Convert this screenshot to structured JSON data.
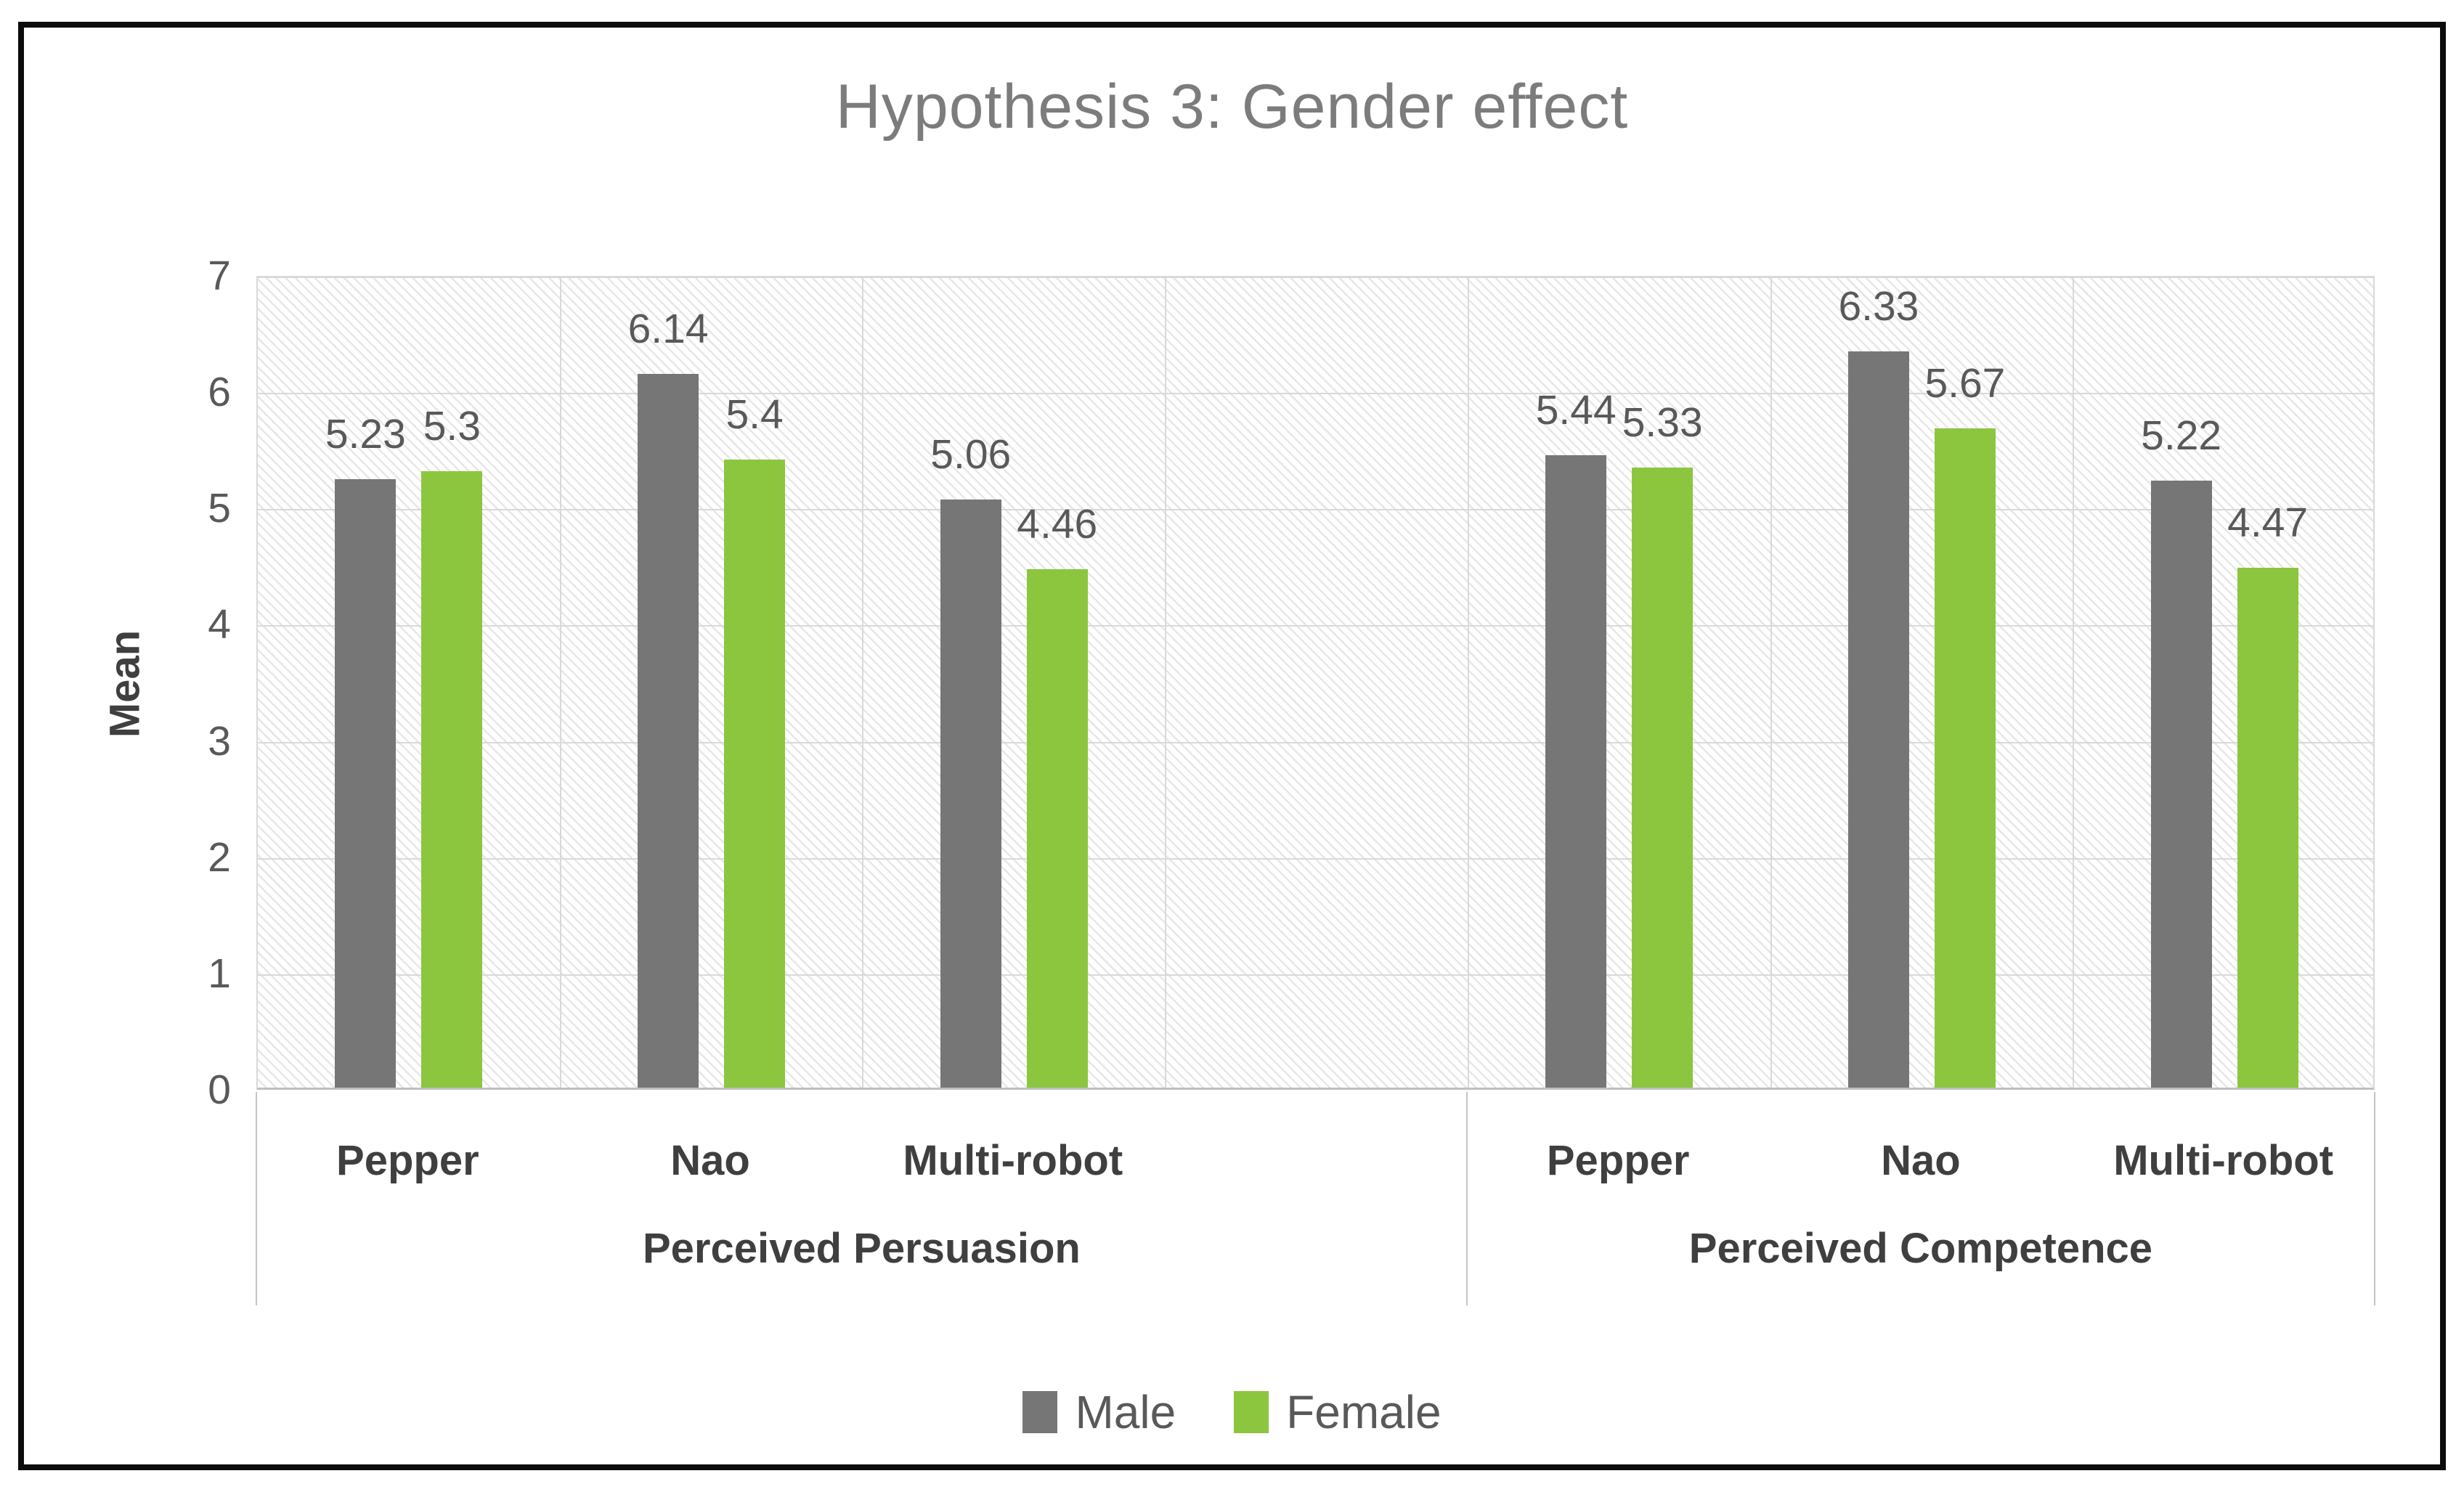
{
  "chart_data": {
    "type": "bar",
    "title": "Hypothesis 3: Gender effect",
    "xlabel": "",
    "ylabel": "Mean",
    "ylim": [
      0,
      7
    ],
    "ytick_step": 1,
    "grid": true,
    "plot_background": "light-diagonal-hatch",
    "legend_position": "bottom-center",
    "series": [
      {
        "name": "Male",
        "color": "#767676"
      },
      {
        "name": "Female",
        "color": "#8cc63f"
      }
    ],
    "groups": [
      {
        "label": "Perceived Persuasion",
        "categories": [
          "Pepper",
          "Nao",
          "Multi-robot"
        ],
        "values": {
          "Male": [
            5.23,
            6.14,
            5.06
          ],
          "Female": [
            5.3,
            5.4,
            4.46
          ]
        }
      },
      {
        "label": "Perceived Competence",
        "categories": [
          "Pepper",
          "Nao",
          "Multi-robot"
        ],
        "values": {
          "Male": [
            5.44,
            6.33,
            5.22
          ],
          "Female": [
            5.33,
            5.67,
            4.47
          ]
        }
      }
    ],
    "layout": {
      "slot_count": 7,
      "group_slot_start": [
        0,
        4
      ],
      "empty_slot_note": "one blank category slot sits between the two groups (belongs to left group span)"
    }
  },
  "colors": {
    "frame_border": "#0c0c0c",
    "title_text": "#7c7c7c",
    "axis_text": "#595959",
    "bold_label_text": "#3f3f3f",
    "gridline": "#d9d9d9",
    "axis_line": "#bfbfbf",
    "hatch_line": "#e7e7e7"
  }
}
